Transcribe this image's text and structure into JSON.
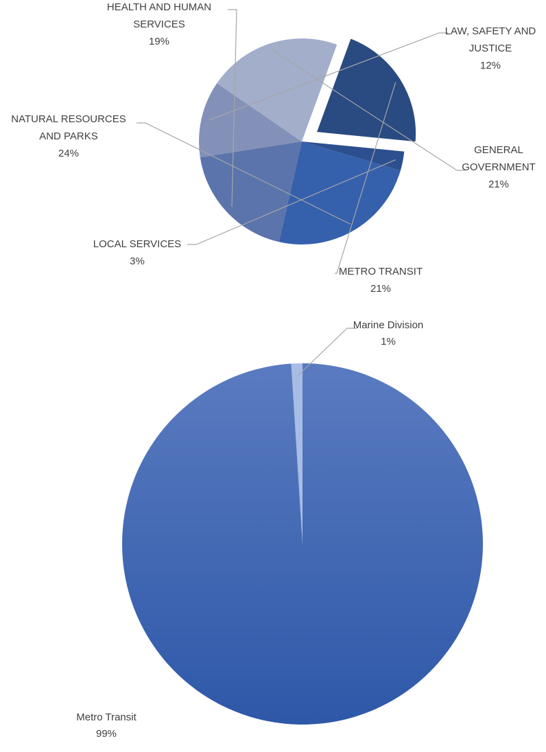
{
  "chart_data": [
    {
      "type": "pie",
      "exploded": "METRO TRANSIT",
      "start": "METRO TRANSIT, starting at the 20-degree clockwise bearing",
      "slices": [
        {
          "category": "METRO TRANSIT",
          "lines": [
            "METRO TRANSIT"
          ],
          "pct": "21%",
          "value": 21,
          "color": "#2a4a82"
        },
        {
          "category": "LOCAL SERVICES",
          "lines": [
            "LOCAL SERVICES"
          ],
          "pct": "3%",
          "value": 3,
          "color": "#2c4f8f"
        },
        {
          "category": "NATURAL RESOURCES AND PARKS",
          "lines": [
            "NATURAL RESOURCES",
            "AND PARKS"
          ],
          "pct": "24%",
          "value": 24,
          "color": "#3560ac"
        },
        {
          "category": "HEALTH AND HUMAN SERVICES",
          "lines": [
            "HEALTH AND HUMAN",
            "SERVICES"
          ],
          "pct": "19%",
          "value": 19,
          "color": "#5b74ab"
        },
        {
          "category": "LAW, SAFETY AND JUSTICE",
          "lines": [
            "LAW, SAFETY AND",
            "JUSTICE"
          ],
          "pct": "12%",
          "value": 12,
          "color": "#8391b9"
        },
        {
          "category": "GENERAL GOVERNMENT",
          "lines": [
            "GENERAL",
            "GOVERNMENT"
          ],
          "pct": "21%",
          "value": 21,
          "color": "#a3aecb"
        }
      ]
    },
    {
      "type": "pie",
      "slices": [
        {
          "category": "Marine Division",
          "lines": [
            "Marine Division"
          ],
          "pct": "1%",
          "value": 1,
          "color": "#a7bde6"
        },
        {
          "category": "Metro Transit",
          "lines": [
            "Metro Transit"
          ],
          "pct": "99%",
          "value": 99,
          "color": "#3d66b5"
        }
      ]
    }
  ]
}
